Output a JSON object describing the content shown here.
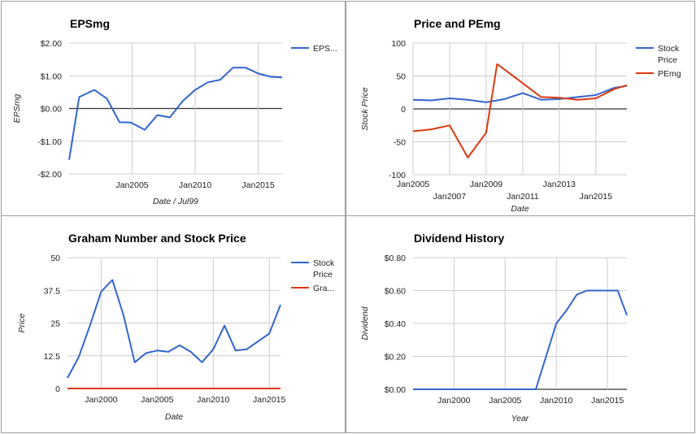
{
  "colors": {
    "blue": "#3366cc",
    "red": "#dc3912",
    "grid": "#cccccc",
    "zero": "#333333"
  },
  "chart_data": [
    {
      "type": "line",
      "title": "EPSmg",
      "xlabel": "Date / Jul99",
      "ylabel": "EPSmg",
      "xlim": [
        2000.0,
        2016.9
      ],
      "ylim": [
        -2,
        2
      ],
      "y_ticks": [
        "$2.00",
        "$1.00",
        "$0.00",
        "-$1.00",
        "-$2.00"
      ],
      "y_tick_values": [
        2,
        1,
        0,
        -1,
        -2
      ],
      "x_ticks": [
        "Jan2005",
        "Jan2010",
        "Jan2015"
      ],
      "x_tick_values": [
        2005,
        2010,
        2015
      ],
      "legend": "right",
      "series": [
        {
          "name": "EPS...",
          "color": "#3366cc",
          "x": [
            2000.0,
            2000.8,
            2002.0,
            2003.0,
            2004.0,
            2004.9,
            2006.0,
            2007.0,
            2008.0,
            2009.0,
            2010.0,
            2011.0,
            2012.0,
            2013.0,
            2014.0,
            2015.0,
            2016.0,
            2016.9
          ],
          "values": [
            -1.57,
            0.35,
            0.57,
            0.3,
            -0.42,
            -0.43,
            -0.65,
            -0.2,
            -0.27,
            0.22,
            0.57,
            0.8,
            0.88,
            1.25,
            1.25,
            1.07,
            0.97,
            0.95
          ]
        }
      ]
    },
    {
      "type": "line",
      "title": "Price and PEmg",
      "xlabel": "Date",
      "ylabel": "Stock Price",
      "xlim": [
        2005.0,
        2016.7
      ],
      "ylim": [
        -100,
        100
      ],
      "y_ticks": [
        "100",
        "50",
        "0",
        "-50",
        "-100"
      ],
      "y_tick_values": [
        100,
        50,
        0,
        -50,
        -100
      ],
      "x_ticks_top": [
        "Jan2005",
        "Jan2009",
        "Jan2013"
      ],
      "x_ticks_top_values": [
        2005,
        2009,
        2013
      ],
      "x_ticks_bottom": [
        "Jan2007",
        "Jan2011",
        "Jan2015"
      ],
      "x_ticks_bottom_values": [
        2007,
        2011,
        2015
      ],
      "legend": "right",
      "series": [
        {
          "name": "Stock Price",
          "color": "#3366cc",
          "x": [
            2005.0,
            2006.0,
            2007.0,
            2008.0,
            2009.0,
            2010.0,
            2011.0,
            2012.0,
            2013.0,
            2014.0,
            2015.0,
            2016.0,
            2016.7
          ],
          "values": [
            14,
            13,
            16,
            14,
            10,
            15,
            24,
            14,
            15,
            18,
            21,
            32,
            35
          ]
        },
        {
          "name": "PEmg",
          "color": "#dc3912",
          "x": [
            2005.0,
            2006.0,
            2007.0,
            2008.0,
            2009.0,
            2009.6,
            2010.0,
            2011.0,
            2012.0,
            2013.0,
            2014.0,
            2015.0,
            2016.0,
            2016.7
          ],
          "values": [
            -34,
            -31,
            -25,
            -74,
            -36,
            68,
            60,
            39,
            18,
            17,
            14,
            16,
            30,
            36
          ]
        }
      ]
    },
    {
      "type": "line",
      "title": "Graham Number and Stock Price",
      "xlabel": "Date",
      "ylabel": "Price",
      "xlim": [
        1997.0,
        2016.0
      ],
      "ylim": [
        0,
        50
      ],
      "y_ticks": [
        "50",
        "37.5",
        "25",
        "12.5",
        "0"
      ],
      "y_tick_values": [
        50,
        37.5,
        25,
        12.5,
        0
      ],
      "x_ticks": [
        "Jan2000",
        "Jan2005",
        "Jan2010",
        "Jan2015"
      ],
      "x_tick_values": [
        2000,
        2005,
        2010,
        2015
      ],
      "legend": "right",
      "series": [
        {
          "name": "Stock Price",
          "color": "#3366cc",
          "x": [
            1997.0,
            1998.0,
            1999.0,
            2000.0,
            2001.0,
            2002.0,
            2003.0,
            2004.0,
            2005.0,
            2006.0,
            2007.0,
            2008.0,
            2009.0,
            2010.0,
            2011.0,
            2012.0,
            2013.0,
            2014.0,
            2015.0,
            2016.0
          ],
          "values": [
            4,
            12,
            24,
            37,
            41.5,
            28,
            10,
            13.5,
            14.5,
            14,
            16.5,
            14,
            10,
            15,
            24,
            14.5,
            15,
            18,
            21,
            32
          ]
        },
        {
          "name": "Gra...",
          "color": "#dc3912",
          "x": [
            1997.0,
            2016.0
          ],
          "values": [
            0,
            0
          ]
        }
      ]
    },
    {
      "type": "line",
      "title": "Dividend History",
      "xlabel": "Year",
      "ylabel": "Dividend",
      "xlim": [
        1996.0,
        2016.9
      ],
      "ylim": [
        0,
        0.8
      ],
      "y_ticks": [
        "$0.80",
        "$0.60",
        "$0.40",
        "$0.20",
        "$0.00"
      ],
      "y_tick_values": [
        0.8,
        0.6,
        0.4,
        0.2,
        0
      ],
      "x_ticks": [
        "Jan2000",
        "Jan2005",
        "Jan2010",
        "Jan2015"
      ],
      "x_tick_values": [
        2000,
        2005,
        2010,
        2015
      ],
      "series": [
        {
          "name": "Dividend",
          "color": "#3366cc",
          "x": [
            1996.0,
            2007.0,
            2008.0,
            2009.0,
            2010.0,
            2011.0,
            2012.0,
            2013.0,
            2014.0,
            2015.0,
            2016.0,
            2016.9
          ],
          "values": [
            0,
            0,
            0,
            0.2,
            0.4,
            0.48,
            0.575,
            0.6,
            0.6,
            0.6,
            0.6,
            0.45
          ]
        }
      ]
    }
  ]
}
